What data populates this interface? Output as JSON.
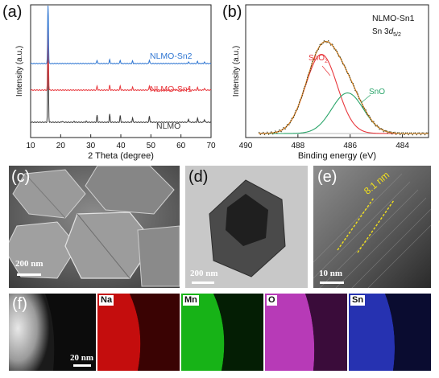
{
  "colors": {
    "nlmo": "#3a3a3a",
    "nlmo_sn1": "#e8383d",
    "nlmo_sn2": "#2f76d2",
    "sno2": "#e8383d",
    "sno": "#2aa56a",
    "envelope": "#e08a2c",
    "raw": "#3b3b1d",
    "na_map": "#e01010",
    "mn_map": "#1fbf1f",
    "o_map": "#d040d0",
    "sn_map": "#2a3ee0"
  },
  "panels": {
    "a": "(a)",
    "b": "(b)",
    "c": "(c)",
    "d": "(d)",
    "e": "(e)",
    "f": "(f)"
  },
  "chart_data": [
    {
      "type": "line",
      "panel": "(a)",
      "xlabel": "2 Theta (degree)",
      "ylabel": "Intensity (a.u.)",
      "xlim": [
        10,
        70
      ],
      "xticks": [
        10,
        20,
        30,
        40,
        50,
        60,
        70
      ],
      "grid": false,
      "series": [
        {
          "name": "NLMO",
          "offset": 0,
          "peaks": [
            [
              15.8,
              12.0
            ],
            [
              20.5,
              0.15
            ],
            [
              24.5,
              0.12
            ],
            [
              28.5,
              0.15
            ],
            [
              32.1,
              0.95
            ],
            [
              36.3,
              1.1
            ],
            [
              39.8,
              0.9
            ],
            [
              43.9,
              0.6
            ],
            [
              49.5,
              0.85
            ],
            [
              62.5,
              0.45
            ],
            [
              65.5,
              0.55
            ],
            [
              67.8,
              0.4
            ]
          ]
        },
        {
          "name": "NLMO-Sn1",
          "offset": 1,
          "peaks": [
            [
              15.8,
              10.0
            ],
            [
              32.1,
              0.55
            ],
            [
              36.3,
              0.65
            ],
            [
              39.8,
              0.55
            ],
            [
              43.9,
              0.4
            ],
            [
              49.5,
              0.6
            ],
            [
              62.5,
              0.3
            ],
            [
              65.5,
              0.35
            ],
            [
              67.8,
              0.25
            ]
          ]
        },
        {
          "name": "NLMO-Sn2",
          "offset": 2,
          "peaks": [
            [
              15.8,
              9.0
            ],
            [
              32.1,
              0.45
            ],
            [
              36.3,
              0.55
            ],
            [
              39.8,
              0.45
            ],
            [
              43.9,
              0.35
            ],
            [
              49.5,
              0.5
            ],
            [
              62.5,
              0.25
            ],
            [
              65.5,
              0.3
            ],
            [
              67.8,
              0.2
            ]
          ]
        }
      ]
    },
    {
      "type": "line",
      "panel": "(b)",
      "title": "NLMO-Sn1",
      "subtitle": "Sn 3d5/2",
      "xlabel": "Binding energy (eV)",
      "ylabel": "Intensity (a.u.)",
      "xlim": [
        490,
        483
      ],
      "xticks": [
        490,
        488,
        486,
        484
      ],
      "annotations": [
        "SnO2",
        "SnO"
      ],
      "series": [
        {
          "name": "SnO2",
          "center": 487.1,
          "amplitude": 0.82,
          "sigma": 0.9
        },
        {
          "name": "SnO",
          "center": 486.1,
          "amplitude": 0.42,
          "sigma": 0.9
        },
        {
          "name": "envelope",
          "description": "sum of fitted components",
          "peak_x": 486.8,
          "peak_y": 1.0
        },
        {
          "name": "raw",
          "description": "experimental data (dotted)"
        }
      ]
    }
  ],
  "panel_c": {
    "scale": "200 nm"
  },
  "panel_d": {
    "scale": "200 nm"
  },
  "panel_e": {
    "scale": "10 nm",
    "lattice": "8.1 nm"
  },
  "panel_f": {
    "scale": "20 nm",
    "elements": [
      "Na",
      "Mn",
      "O",
      "Sn"
    ]
  }
}
